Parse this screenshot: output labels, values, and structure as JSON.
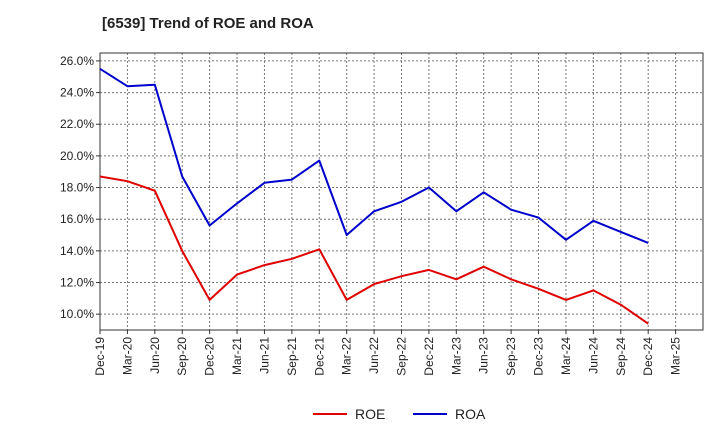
{
  "chart_data": {
    "type": "line",
    "title": "[6539]  Trend of ROE and ROA",
    "xlabel": "",
    "ylabel": "",
    "x": [
      "Dec-19",
      "Mar-20",
      "Jun-20",
      "Sep-20",
      "Dec-20",
      "Mar-21",
      "Jun-21",
      "Sep-21",
      "Dec-21",
      "Mar-22",
      "Jun-22",
      "Sep-22",
      "Dec-22",
      "Mar-23",
      "Jun-23",
      "Sep-23",
      "Dec-23",
      "Mar-24",
      "Jun-24",
      "Sep-24",
      "Dec-24",
      "Mar-25"
    ],
    "ylim": [
      9.0,
      26.5
    ],
    "yticks": [
      10.0,
      12.0,
      14.0,
      16.0,
      18.0,
      20.0,
      22.0,
      24.0,
      26.0
    ],
    "ytick_labels": [
      "10.0%",
      "12.0%",
      "14.0%",
      "16.0%",
      "18.0%",
      "20.0%",
      "22.0%",
      "24.0%",
      "26.0%"
    ],
    "grid": true,
    "legend_position": "bottom",
    "series": [
      {
        "name": "ROE",
        "color": "#e00000",
        "values": [
          18.7,
          18.4,
          17.8,
          14.0,
          10.9,
          12.5,
          13.1,
          13.5,
          14.1,
          10.9,
          11.9,
          12.4,
          12.8,
          12.2,
          13.0,
          12.2,
          11.6,
          10.9,
          11.5,
          10.6,
          9.4,
          null
        ]
      },
      {
        "name": "ROA",
        "color": "#0000cc",
        "values": [
          25.5,
          24.4,
          24.5,
          18.7,
          15.6,
          17.0,
          18.3,
          18.5,
          19.7,
          15.0,
          16.5,
          17.1,
          18.0,
          16.5,
          17.7,
          16.6,
          16.1,
          14.7,
          15.9,
          15.2,
          14.5,
          null
        ]
      }
    ]
  }
}
